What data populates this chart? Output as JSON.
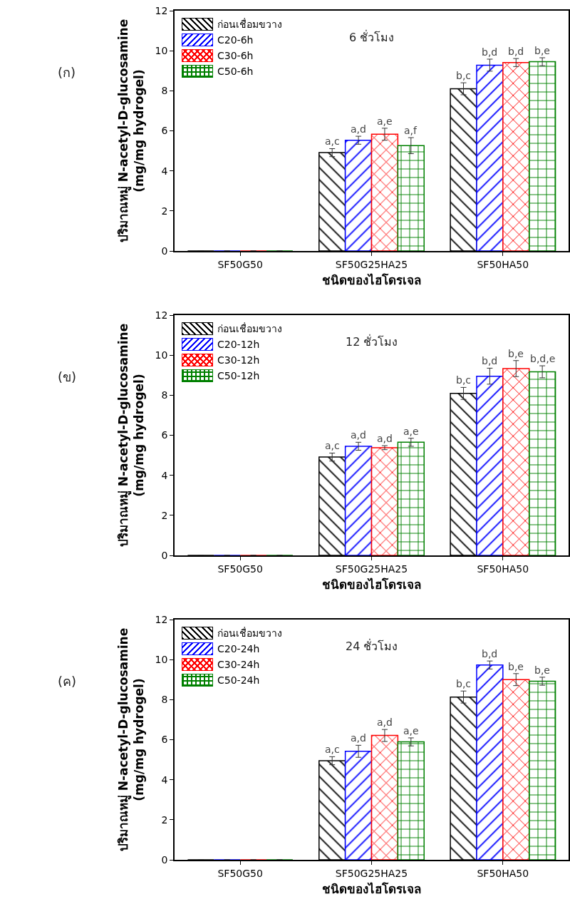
{
  "chart_data": [
    {
      "type": "bar",
      "title": "6 ชั่วโมง",
      "xlabel": "ชนิดของไฮโดรเจล",
      "ylabel": "ปริมาณหมู่ N-acetyl-D-glucosamine\n(mg/mg hydrogel)",
      "annotations": [
        "(ก)"
      ],
      "categories": [
        "SF50G50",
        "SF50G25HA25",
        "SF50HA50"
      ],
      "ylim": [
        0,
        12
      ],
      "yticks": [
        0,
        2,
        4,
        6,
        8,
        10,
        12
      ],
      "legend": "top left",
      "grid": false,
      "series": [
        {
          "name": "ก่อนเชื่อมขวาง",
          "color": "#000000",
          "values": [
            0,
            4.91,
            8.1
          ],
          "errors": [
            null,
            0.2,
            0.3
          ],
          "value_labels": [
            null,
            "a,c",
            "b,c"
          ]
        },
        {
          "name": "C20-6h",
          "color": "#0000ff",
          "values": [
            0,
            5.53,
            9.28
          ],
          "errors": [
            null,
            0.2,
            0.3
          ],
          "value_labels": [
            null,
            "a,d",
            "b,d"
          ]
        },
        {
          "name": "C30-6h",
          "color": "#ff0000",
          "values": [
            0,
            5.83,
            9.41
          ],
          "errors": [
            null,
            0.3,
            0.2
          ],
          "value_labels": [
            null,
            "a,e",
            "b,d"
          ]
        },
        {
          "name": "C50-6h",
          "color": "#008000",
          "values": [
            0,
            5.26,
            9.45
          ],
          "errors": [
            null,
            0.4,
            0.2
          ],
          "value_labels": [
            null,
            "a,f",
            "b,e"
          ]
        }
      ]
    },
    {
      "type": "bar",
      "title": "12 ชั่วโมง",
      "xlabel": "ชนิดของไฮโดรเจล",
      "ylabel": "ปริมาณหมู่ N-acetyl-D-glucosamine\n(mg/mg hydrogel)",
      "annotations": [
        "(ข)"
      ],
      "categories": [
        "SF50G50",
        "SF50G25HA25",
        "SF50HA50"
      ],
      "ylim": [
        0,
        12
      ],
      "yticks": [
        0,
        2,
        4,
        6,
        8,
        10,
        12
      ],
      "legend": "top left",
      "grid": false,
      "series": [
        {
          "name": "ก่อนเชื่อมขวาง",
          "color": "#000000",
          "values": [
            0,
            4.91,
            8.09
          ],
          "errors": [
            null,
            0.2,
            0.3
          ],
          "value_labels": [
            null,
            "a,c",
            "b,c"
          ]
        },
        {
          "name": "C20-12h",
          "color": "#0000ff",
          "values": [
            0,
            5.45,
            8.95
          ],
          "errors": [
            null,
            0.2,
            0.4
          ],
          "value_labels": [
            null,
            "a,d",
            "b,d"
          ]
        },
        {
          "name": "C30-12h",
          "color": "#ff0000",
          "values": [
            0,
            5.38,
            9.33
          ],
          "errors": [
            null,
            0.1,
            0.4
          ],
          "value_labels": [
            null,
            "a,d",
            "b,e"
          ]
        },
        {
          "name": "C50-12h",
          "color": "#008000",
          "values": [
            0,
            5.65,
            9.17
          ],
          "errors": [
            null,
            0.2,
            0.3
          ],
          "value_labels": [
            null,
            "a,e",
            "b,d,e"
          ]
        }
      ]
    },
    {
      "type": "bar",
      "title": "24 ชั่วโมง",
      "xlabel": "ชนิดของไฮโดรเจล",
      "ylabel": "ปริมาณหมู่ N-acetyl-D-glucosamine\n(mg/mg hydrogel)",
      "annotations": [
        "(ค)"
      ],
      "categories": [
        "SF50G50",
        "SF50G25HA25",
        "SF50HA50"
      ],
      "ylim": [
        0,
        12
      ],
      "yticks": [
        0,
        2,
        4,
        6,
        8,
        10,
        12
      ],
      "legend": "top left",
      "grid": false,
      "series": [
        {
          "name": "ก่อนเชื่อมขวาง",
          "color": "#000000",
          "values": [
            0,
            4.95,
            8.13
          ],
          "errors": [
            null,
            0.2,
            0.3
          ],
          "value_labels": [
            null,
            "a,c",
            "b,c"
          ]
        },
        {
          "name": "C20-24h",
          "color": "#0000ff",
          "values": [
            0,
            5.42,
            9.73
          ],
          "errors": [
            null,
            0.3,
            0.2
          ],
          "value_labels": [
            null,
            "a,d",
            "b,d"
          ]
        },
        {
          "name": "C30-24h",
          "color": "#ff0000",
          "values": [
            0,
            6.21,
            9.0
          ],
          "errors": [
            null,
            0.3,
            0.3
          ],
          "value_labels": [
            null,
            "a,d",
            "b,e"
          ]
        },
        {
          "name": "C50-24h",
          "color": "#008000",
          "values": [
            0,
            5.89,
            8.92
          ],
          "errors": [
            null,
            0.2,
            0.2
          ],
          "value_labels": [
            null,
            "a,e",
            "b,e"
          ]
        }
      ]
    }
  ]
}
